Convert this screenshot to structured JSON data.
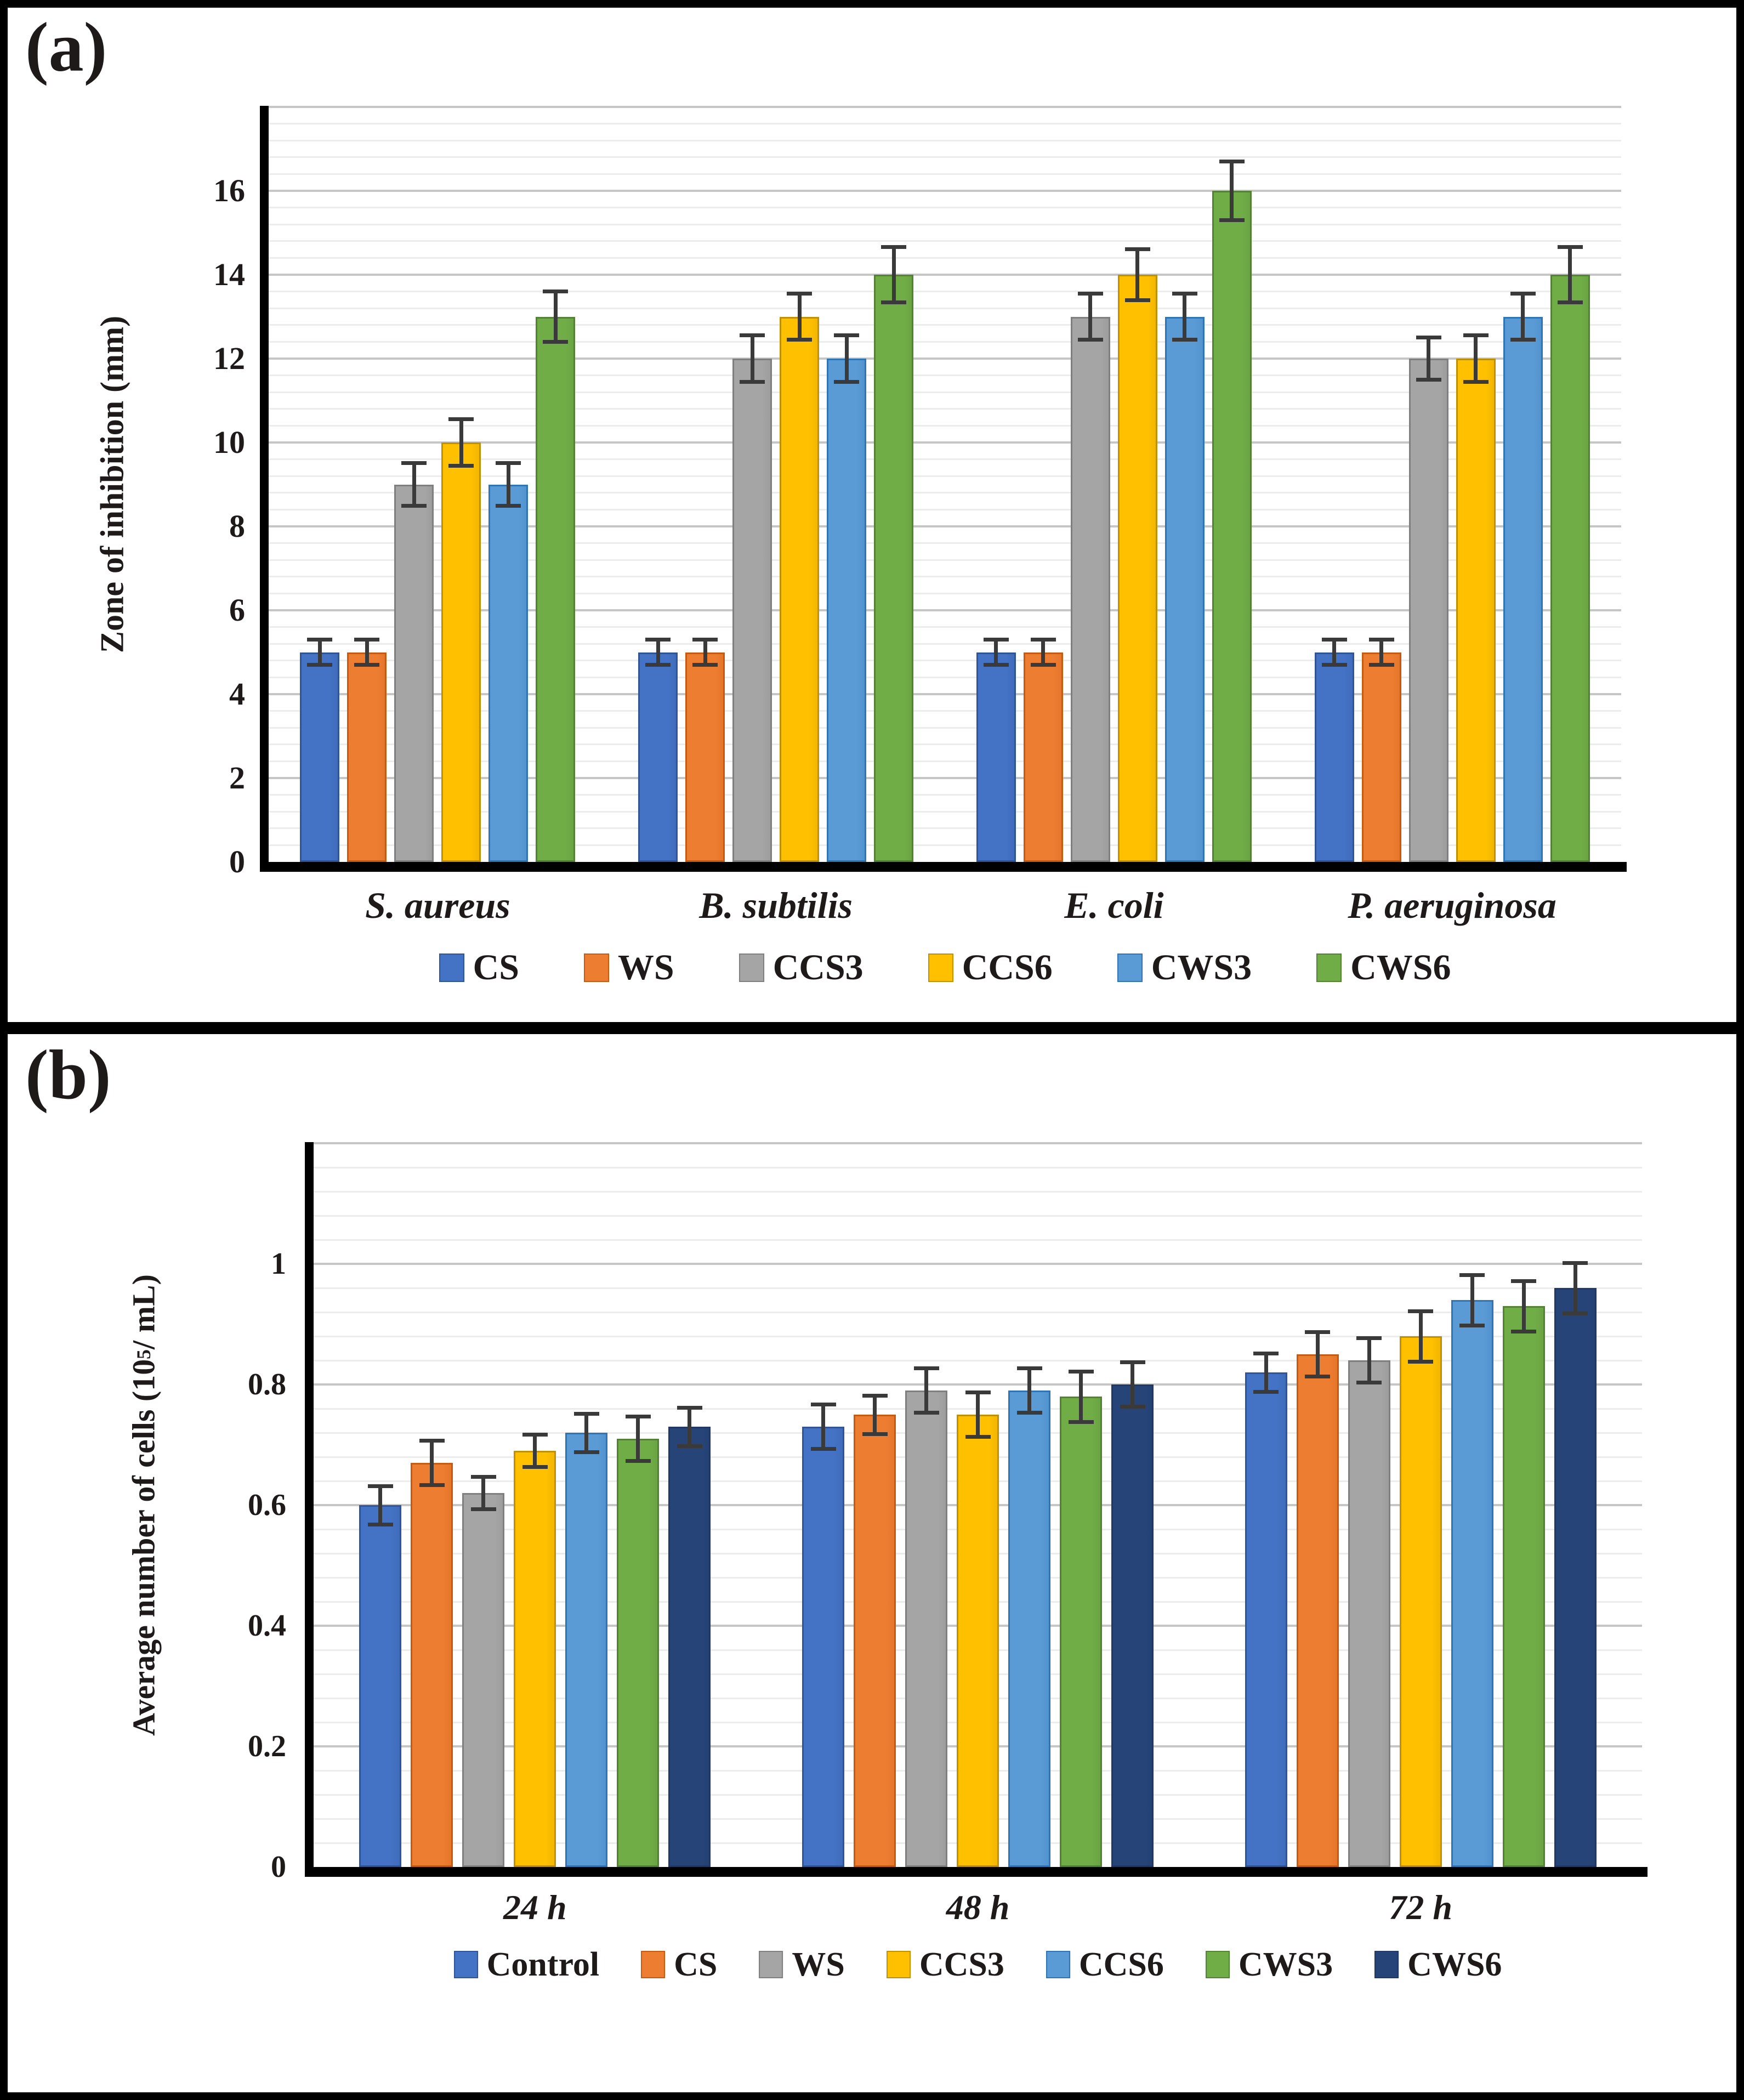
{
  "panels": {
    "a": {
      "label": "(a)"
    },
    "b": {
      "label": "(b)"
    }
  },
  "colors": {
    "grid_minor": "#ECECEC",
    "grid_major": "#C6C6C6",
    "axis": "#000000",
    "error_bar": "#3A3A3A",
    "text": "#1E1A1A",
    "background": "#FFFFFF",
    "border": "#000000"
  },
  "chart_data": [
    {
      "id": "a",
      "type": "bar",
      "title": "",
      "ylabel": "Zone of inhibition (mm)",
      "ylabel_parts": {
        "prefix": "Zone of inhibition  (mm)",
        "sup": "",
        "suffix": ""
      },
      "xlabel": "",
      "categories": [
        "S. aureus",
        "B. subtilis",
        "E. coli",
        "P. aeruginosa"
      ],
      "series": [
        {
          "name": "CS",
          "color": "#4472C4",
          "border": "#2F5597",
          "values": [
            5,
            5,
            5,
            5
          ],
          "errors": [
            0.35,
            0.35,
            0.35,
            0.35
          ]
        },
        {
          "name": "WS",
          "color": "#ED7D31",
          "border": "#C55A11",
          "values": [
            5,
            5,
            5,
            5
          ],
          "errors": [
            0.35,
            0.35,
            0.35,
            0.35
          ]
        },
        {
          "name": "CCS3",
          "color": "#A5A5A5",
          "border": "#7F7F7F",
          "values": [
            9,
            12,
            13,
            12
          ],
          "errors": [
            0.55,
            0.6,
            0.6,
            0.55
          ]
        },
        {
          "name": "CCS6",
          "color": "#FFC000",
          "border": "#BF9000",
          "values": [
            10,
            13,
            14,
            12
          ],
          "errors": [
            0.6,
            0.6,
            0.65,
            0.6
          ]
        },
        {
          "name": "CWS3",
          "color": "#5B9BD5",
          "border": "#2E75B6",
          "values": [
            9,
            12,
            13,
            13
          ],
          "errors": [
            0.55,
            0.6,
            0.6,
            0.6
          ]
        },
        {
          "name": "CWS6",
          "color": "#70AD47",
          "border": "#548235",
          "values": [
            13,
            14,
            16,
            14
          ],
          "errors": [
            0.65,
            0.7,
            0.75,
            0.7
          ]
        }
      ],
      "ylim": [
        0,
        18
      ],
      "major_step": 2,
      "minor_step": 0.4,
      "yticks": [
        {
          "value": 0,
          "label": "0"
        },
        {
          "value": 2,
          "label": "2"
        },
        {
          "value": 4,
          "label": "4"
        },
        {
          "value": 6,
          "label": "6"
        },
        {
          "value": 8,
          "label": "8"
        },
        {
          "value": 10,
          "label": "10"
        },
        {
          "value": 12,
          "label": "12"
        },
        {
          "value": 14,
          "label": "14"
        },
        {
          "value": 16,
          "label": "16"
        }
      ],
      "grid": true,
      "legend_position": "bottom"
    },
    {
      "id": "b",
      "type": "bar",
      "title": "",
      "ylabel": "Average number of cells (10⁵/ mL)",
      "ylabel_parts": {
        "prefix": "Average number  of cells (10",
        "sup": "5",
        "suffix": "/ mL)"
      },
      "xlabel": "",
      "categories": [
        "24 h",
        "48 h",
        "72 h"
      ],
      "series": [
        {
          "name": "Control",
          "color": "#4472C4",
          "border": "#2F5597",
          "values": [
            0.6,
            0.73,
            0.82
          ],
          "errors": [
            0.035,
            0.04,
            0.035
          ]
        },
        {
          "name": "CS",
          "color": "#ED7D31",
          "border": "#C55A11",
          "values": [
            0.67,
            0.75,
            0.85
          ],
          "errors": [
            0.04,
            0.035,
            0.04
          ]
        },
        {
          "name": "WS",
          "color": "#A5A5A5",
          "border": "#7F7F7F",
          "values": [
            0.62,
            0.79,
            0.84
          ],
          "errors": [
            0.03,
            0.04,
            0.04
          ]
        },
        {
          "name": "CCS3",
          "color": "#FFC000",
          "border": "#BF9000",
          "values": [
            0.69,
            0.75,
            0.88
          ],
          "errors": [
            0.03,
            0.04,
            0.045
          ]
        },
        {
          "name": "CCS6",
          "color": "#5B9BD5",
          "border": "#2E75B6",
          "values": [
            0.72,
            0.79,
            0.94
          ],
          "errors": [
            0.035,
            0.04,
            0.045
          ]
        },
        {
          "name": "CWS3",
          "color": "#70AD47",
          "border": "#548235",
          "values": [
            0.71,
            0.78,
            0.93
          ],
          "errors": [
            0.04,
            0.045,
            0.045
          ]
        },
        {
          "name": "CWS6",
          "color": "#264478",
          "border": "#1F3864",
          "values": [
            0.73,
            0.8,
            0.96
          ],
          "errors": [
            0.035,
            0.04,
            0.045
          ]
        }
      ],
      "ylim": [
        0,
        1.2
      ],
      "major_step": 0.2,
      "minor_step": 0.04,
      "yticks": [
        {
          "value": 0,
          "label": "0"
        },
        {
          "value": 0.2,
          "label": "0.2"
        },
        {
          "value": 0.4,
          "label": "0.4"
        },
        {
          "value": 0.6,
          "label": "0.6"
        },
        {
          "value": 0.8,
          "label": "0.8"
        },
        {
          "value": 1,
          "label": "1"
        }
      ],
      "grid": true,
      "legend_position": "bottom"
    }
  ]
}
